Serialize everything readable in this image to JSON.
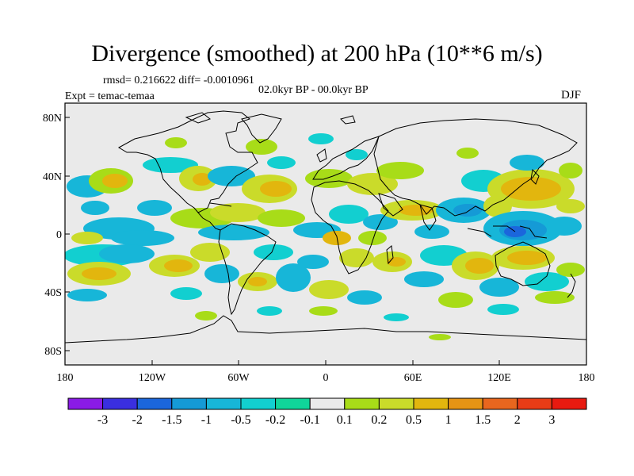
{
  "header": {
    "title": "Divergence (smoothed) at 200 hPa (10**6 m/s)",
    "stats": "rmsd= 0.216622 diff= -0.0010961",
    "period": "02.0kyr BP - 00.0kyr BP",
    "experiment": "Expt = temac-temaa",
    "season": "DJF"
  },
  "axes": {
    "lat_labels": [
      "80N",
      "40N",
      "0",
      "40S",
      "80S"
    ],
    "lon_labels": [
      "180",
      "120W",
      "60W",
      "0",
      "60E",
      "120E",
      "180"
    ]
  },
  "colorbar": {
    "labels": [
      "-3",
      "-2",
      "-1.5",
      "-1",
      "-0.5",
      "-0.2",
      "-0.1",
      "0.1",
      "0.2",
      "0.5",
      "1",
      "1.5",
      "2",
      "3"
    ],
    "colors": [
      "#8a1be6",
      "#3a2fe0",
      "#1b66dc",
      "#159ad6",
      "#17b6d8",
      "#12cfd0",
      "#10d59a",
      "#eaeaea",
      "#a8dc18",
      "#cadb2a",
      "#e2b60e",
      "#e69414",
      "#e8661e",
      "#e83c16",
      "#e81a10"
    ]
  },
  "palette": {
    "background_map": "#eaeaea",
    "blue": "#17b6d8",
    "teal": "#12cfd0",
    "green": "#a8dc18",
    "yellow": "#cadb2a",
    "orange": "#e2b60e",
    "dark_blue": "#159ad6",
    "deep_blue": "#1b66dc",
    "red_orange": "#e8661e"
  }
}
